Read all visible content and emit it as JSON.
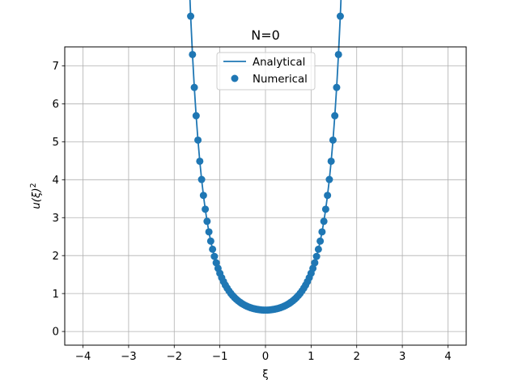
{
  "chart_data": {
    "type": "line",
    "title": "N=0",
    "xlabel": "ξ",
    "ylabel_main": "u(ξ)",
    "ylabel_sup": "2",
    "xlim": [
      -4.4,
      4.4
    ],
    "ylim": [
      -0.36,
      7.5
    ],
    "xticks": [
      -4,
      -3,
      -2,
      -1,
      0,
      1,
      2,
      3,
      4
    ],
    "xtick_labels": [
      "−4",
      "−3",
      "−2",
      "−1",
      "0",
      "1",
      "2",
      "3",
      "4"
    ],
    "yticks": [
      0,
      1,
      2,
      3,
      4,
      5,
      6,
      7
    ],
    "ytick_labels": [
      "0",
      "1",
      "2",
      "3",
      "4",
      "5",
      "6",
      "7"
    ],
    "grid": true,
    "legend_position": "upper-center",
    "color": "#1f77b4",
    "x_range": [
      -4,
      4
    ],
    "n_points": 201,
    "function": "exp(xi^2)/pi^0.5",
    "series": [
      {
        "name": "Analytical",
        "style": "line"
      },
      {
        "name": "Numerical",
        "style": "scatter"
      }
    ]
  }
}
